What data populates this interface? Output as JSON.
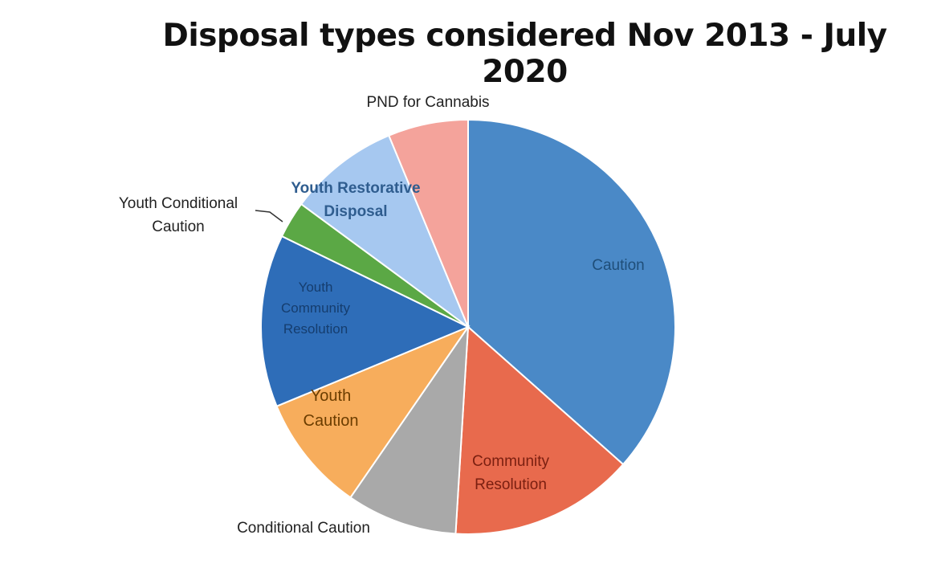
{
  "chart_data": {
    "type": "pie",
    "title": "Disposal types considered Nov 2013 - July 2020",
    "slices": [
      {
        "label": "Caution",
        "value": 38.0,
        "color": "#4a89c7",
        "label_color": "#1f4e79"
      },
      {
        "label": "Community Resolution",
        "value": 15.0,
        "color": "#e86a4d",
        "label_color": "#7a1f10"
      },
      {
        "label": "Conditional Caution",
        "value": 9.0,
        "color": "#a9a9a9",
        "label_color": "#222222"
      },
      {
        "label": "Youth Caution",
        "value": 9.5,
        "color": "#f7ad5c",
        "label_color": "#6b3d00"
      },
      {
        "label": "Youth Community Resolution",
        "value": 14.0,
        "color": "#2e6db8",
        "label_color": "#153d6e"
      },
      {
        "label": "Youth Conditional Caution",
        "value": 3.0,
        "color": "#5ba845",
        "label_color": "#222222"
      },
      {
        "label": "Youth Restorative Disposal",
        "value": 9.0,
        "color": "#a6c8f0",
        "label_color": "#2f5d8f"
      },
      {
        "label": "PND for Cannabis",
        "value": 6.5,
        "color": "#f4a39b",
        "label_color": "#222222"
      }
    ],
    "legend": "none",
    "data_labels": "category names"
  }
}
